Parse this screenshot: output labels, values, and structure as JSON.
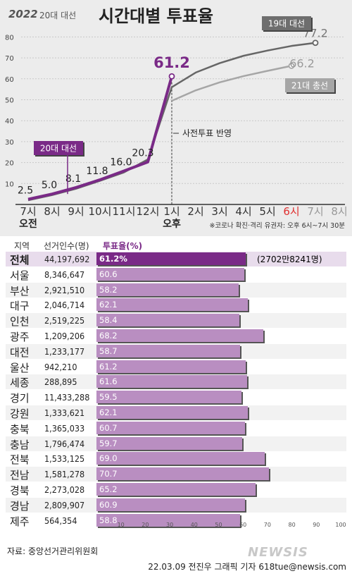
{
  "header": {
    "logo": "2022",
    "subtitle": "20대 대선",
    "title": "시간대별 투표율"
  },
  "chart_data": {
    "type": "line",
    "y_ticks": [
      "10",
      "20",
      "30",
      "40",
      "50",
      "60",
      "70",
      "80"
    ],
    "ylim": [
      0,
      85
    ],
    "x_ticks": [
      "7시",
      "8시",
      "9시",
      "10시",
      "11시",
      "12시",
      "1시",
      "2시",
      "3시",
      "4시",
      "5시",
      "6시",
      "7시",
      "8시"
    ],
    "x_tick_highlight": "6시",
    "x_sublabels": {
      "am": "오전",
      "pm": "오후"
    },
    "series": [
      {
        "name": "20대 대선",
        "color": "#7a2a87",
        "points": [
          [
            0,
            2.5
          ],
          [
            1,
            5.0
          ],
          [
            2,
            8.1
          ],
          [
            3,
            11.8
          ],
          [
            4,
            16.0
          ],
          [
            5,
            20.3
          ],
          [
            6,
            61.2
          ]
        ],
        "labels": [
          "2.5",
          "5.0",
          "8.1",
          "11.8",
          "16.0",
          "20.3",
          "61.2"
        ]
      },
      {
        "name": "19대 대선",
        "color": "#666666",
        "points": [
          [
            0,
            2.0
          ],
          [
            1,
            4.5
          ],
          [
            2,
            7.5
          ],
          [
            3,
            11.3
          ],
          [
            4,
            15.3
          ],
          [
            5,
            21.5
          ],
          [
            6,
            56.0
          ],
          [
            7,
            63.0
          ],
          [
            8,
            67.5
          ],
          [
            9,
            71.0
          ],
          [
            10,
            73.5
          ],
          [
            11,
            75.7
          ],
          [
            12,
            77.2
          ]
        ],
        "labels": [
          "77.2"
        ]
      },
      {
        "name": "21대 총선",
        "color": "#a6a6a6",
        "points": [
          [
            6,
            49.5
          ],
          [
            7,
            54.5
          ],
          [
            8,
            58.3
          ],
          [
            9,
            61.3
          ],
          [
            10,
            63.8
          ],
          [
            11,
            66.2
          ]
        ],
        "labels": [
          "66.2"
        ]
      }
    ],
    "annotations": {
      "early_vote": "사전투표 반영",
      "covid_note": "※코로나 확진·격리 유권자: 오후 6시~7시 30분"
    }
  },
  "table": {
    "headers": {
      "region": "지역",
      "voters": "선거인수(명)",
      "rate": "투표율(%)"
    },
    "axis_ticks": [
      "10",
      "20",
      "30",
      "40",
      "50",
      "60",
      "70",
      "80",
      "90",
      "100"
    ],
    "total_note": "(2702만8241명)",
    "rows": [
      {
        "region": "전체",
        "voters": "44,197,692",
        "rate": 61.2,
        "label": "61.2%"
      },
      {
        "region": "서울",
        "voters": "8,346,647",
        "rate": 60.6,
        "label": "60.6"
      },
      {
        "region": "부산",
        "voters": "2,921,510",
        "rate": 58.2,
        "label": "58.2"
      },
      {
        "region": "대구",
        "voters": "2,046,714",
        "rate": 62.1,
        "label": "62.1"
      },
      {
        "region": "인천",
        "voters": "2,519,225",
        "rate": 58.4,
        "label": "58.4"
      },
      {
        "region": "광주",
        "voters": "1,209,206",
        "rate": 68.2,
        "label": "68.2"
      },
      {
        "region": "대전",
        "voters": "1,233,177",
        "rate": 58.7,
        "label": "58.7"
      },
      {
        "region": "울산",
        "voters": "942,210",
        "rate": 61.2,
        "label": "61.2"
      },
      {
        "region": "세종",
        "voters": "288,895",
        "rate": 61.6,
        "label": "61.6"
      },
      {
        "region": "경기",
        "voters": "11,433,288",
        "rate": 59.5,
        "label": "59.5"
      },
      {
        "region": "강원",
        "voters": "1,333,621",
        "rate": 62.1,
        "label": "62.1"
      },
      {
        "region": "충북",
        "voters": "1,365,033",
        "rate": 60.7,
        "label": "60.7"
      },
      {
        "region": "충남",
        "voters": "1,796,474",
        "rate": 59.7,
        "label": "59.7"
      },
      {
        "region": "전북",
        "voters": "1,533,125",
        "rate": 69.0,
        "label": "69.0"
      },
      {
        "region": "전남",
        "voters": "1,581,278",
        "rate": 70.7,
        "label": "70.7"
      },
      {
        "region": "경북",
        "voters": "2,273,028",
        "rate": 65.2,
        "label": "65.2"
      },
      {
        "region": "경남",
        "voters": "2,809,907",
        "rate": 60.9,
        "label": "60.9"
      },
      {
        "region": "제주",
        "voters": "564,354",
        "rate": 58.8,
        "label": "58.8"
      }
    ]
  },
  "footer": {
    "source": "자료: 중앙선거관리위원회",
    "watermark": "NEWSIS",
    "credit": "22.03.09 전진우 그래픽 기자 618tue@newsis.com"
  },
  "colors": {
    "purple": "#7a2a87",
    "bar": "#b98ec1",
    "bar_total": "#7a2a87",
    "highlight": "#e03030"
  }
}
